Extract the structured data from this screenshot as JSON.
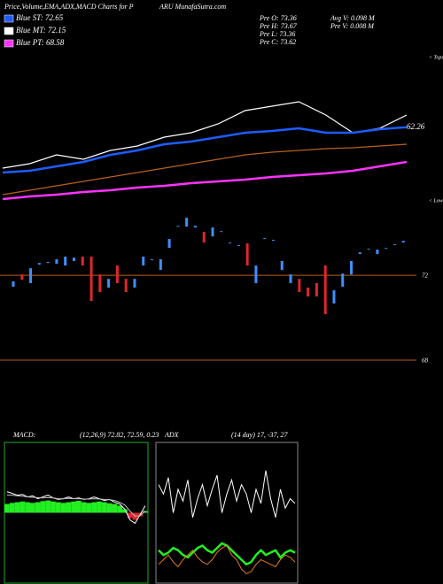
{
  "header": {
    "title": "Price,Volume,EMA,ADX,MACD Charts for P",
    "site": "ARU MunafaSutra.com",
    "legend": [
      {
        "text": "Blue ST: 72.65",
        "color": "#1e5cff"
      },
      {
        "text": "Blue MT: 72.15",
        "color": "#ffffff"
      },
      {
        "text": "Blue PT: 68.58",
        "color": "#ff33ff"
      }
    ],
    "stats": [
      "Pre  O: 73.36",
      "Pre  H: 73.67",
      "Pre  L: 73.36",
      "Pre  C: 73.62"
    ],
    "volume": [
      "Avg V: 0.098  M",
      "Pre  V: 0.008  M"
    ]
  },
  "chart_data": [
    {
      "type": "line",
      "annotation": "< Tops",
      "end_label": 62.26,
      "ylim": [
        45,
        79
      ],
      "series": [
        {
          "color": "#ffffff",
          "values": [
            53,
            54,
            56,
            55,
            57,
            58,
            60,
            61,
            63,
            66,
            67,
            68,
            65,
            61,
            62,
            65
          ]
        },
        {
          "color": "#1e5cff",
          "values": [
            52,
            52.4,
            53.4,
            54.4,
            56,
            57,
            58.4,
            59,
            60,
            61,
            61.4,
            62,
            61,
            61,
            61.8,
            62.26
          ]
        },
        {
          "color": "#b8621b",
          "values": [
            47,
            48,
            49,
            50,
            51,
            52,
            53,
            54,
            55,
            56,
            56.6,
            57,
            57.4,
            57.6,
            58,
            58.4
          ]
        },
        {
          "color": "#ff33ff",
          "values": [
            46,
            46.6,
            47,
            47.6,
            48,
            48.6,
            49,
            49.6,
            50,
            50.4,
            51,
            51.4,
            51.8,
            52.4,
            53.4,
            54.4
          ]
        }
      ]
    },
    {
      "type": "candlestick",
      "annotation": "< Lows",
      "ylim": [
        67.46,
        75.38
      ],
      "yticks": [
        72,
        68
      ],
      "up_color": "#3f8fff",
      "down_color": "#e0262c",
      "level_color": "#b8621b",
      "open": [
        71.46,
        72.04,
        71.63,
        72.5,
        72.58,
        72.54,
        72.46,
        72.67,
        72.88,
        72.88,
        72.04,
        71.42,
        72.46,
        71.83,
        71.42,
        72.46,
        72.71,
        72.25,
        73.29,
        74.29,
        74.29,
        74.25,
        74.04,
        73.83,
        74.04,
        73.5,
        73.38,
        73.5,
        71.63,
        73.71,
        73.63,
        72.25,
        71.63,
        71.83,
        71.42,
        71.63,
        72.46,
        70.67,
        71.46,
        72.04,
        73.0,
        73.21,
        73.0,
        73.25,
        73.42,
        73.54
      ],
      "close": [
        71.71,
        71.79,
        72.33,
        72.58,
        72.63,
        72.75,
        72.88,
        72.83,
        72.46,
        70.79,
        71.21,
        71.83,
        71.63,
        71.21,
        71.83,
        72.88,
        72.75,
        72.75,
        73.71,
        74.33,
        74.71,
        74.33,
        73.54,
        74.25,
        74.08,
        73.54,
        73.42,
        72.46,
        72.46,
        73.75,
        73.67,
        72.67,
        72.04,
        71.21,
        71.0,
        71.0,
        70.17,
        71.29,
        72.08,
        72.67,
        73.08,
        73.25,
        73.21,
        73.29,
        73.46,
        73.62
      ]
    },
    {
      "type": "macd",
      "title": "MACD:",
      "subtitle": "(12,26,9) 72.82, 72.59, 0.23",
      "ylim": [
        -2,
        2
      ],
      "border": "#22aa22",
      "bar_color": "#22ee22",
      "neg_color": "#e0262c",
      "histogram": [
        0.25,
        0.28,
        0.3,
        0.32,
        0.3,
        0.28,
        0.3,
        0.33,
        0.35,
        0.32,
        0.3,
        0.28,
        0.3,
        0.32,
        0.34,
        0.3,
        0.28,
        0.3,
        0.32,
        0.3,
        0.27,
        0.25,
        0.2,
        0.1,
        -0.15,
        -0.2,
        -0.1,
        0.05
      ],
      "series": [
        {
          "color": "#ffffff",
          "values": [
            0.6,
            0.55,
            0.5,
            0.52,
            0.45,
            0.48,
            0.4,
            0.45,
            0.5,
            0.42,
            0.38,
            0.4,
            0.45,
            0.4,
            0.42,
            0.38,
            0.4,
            0.45,
            0.4,
            0.35,
            0.38,
            0.3,
            0.25,
            0.1,
            -0.2,
            -0.3,
            -0.05,
            0.2
          ]
        },
        {
          "color": "#bbbbbb",
          "values": [
            0.5,
            0.5,
            0.48,
            0.47,
            0.45,
            0.44,
            0.43,
            0.42,
            0.43,
            0.42,
            0.4,
            0.4,
            0.41,
            0.4,
            0.4,
            0.39,
            0.39,
            0.4,
            0.39,
            0.38,
            0.37,
            0.35,
            0.3,
            0.22,
            0.05,
            -0.1,
            -0.08,
            0.05
          ]
        }
      ]
    },
    {
      "type": "adx",
      "title": "ADX",
      "subtitle": "(14 day) 17, -37, 27",
      "ylim": [
        0,
        60
      ],
      "border": "#888888",
      "series": [
        {
          "color": "#ffffff",
          "values": [
            42,
            38,
            45,
            30,
            40,
            35,
            44,
            28,
            36,
            42,
            33,
            40,
            46,
            30,
            38,
            44,
            35,
            42,
            38,
            30,
            40,
            34,
            48,
            36,
            28,
            40,
            32,
            36,
            34
          ]
        },
        {
          "color": "#22ee22",
          "values": [
            14,
            12,
            13,
            15,
            14,
            12,
            11,
            13,
            15,
            16,
            14,
            13,
            15,
            17,
            16,
            14,
            12,
            10,
            8,
            9,
            12,
            14,
            12,
            13,
            14,
            11,
            13,
            14,
            13
          ]
        },
        {
          "color": "#e07b1a",
          "values": [
            8,
            10,
            12,
            9,
            7,
            10,
            12,
            14,
            11,
            9,
            8,
            10,
            13,
            15,
            16,
            12,
            10,
            6,
            4,
            5,
            8,
            10,
            9,
            8,
            7,
            10,
            12,
            11,
            9
          ]
        }
      ]
    }
  ]
}
